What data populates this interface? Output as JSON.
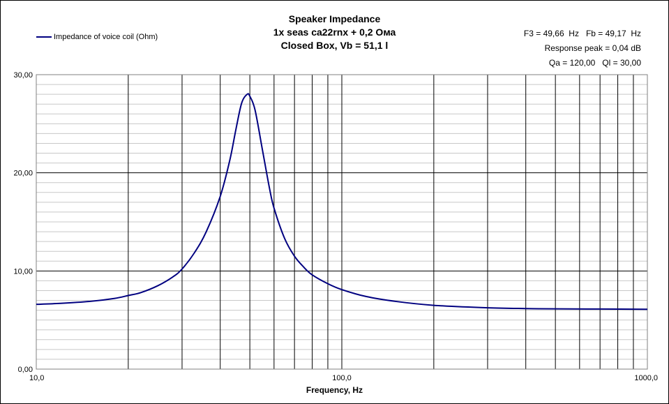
{
  "chart_data": {
    "type": "line",
    "title_lines": [
      "Speaker Impedance",
      "1x seas ca22rnx + 0,2 Ома",
      "Closed Box, Vb = 51,1 l"
    ],
    "annotations": [
      "F3 = 49,66  Hz   Fb = 49,17  Hz",
      "Response peak = 0,04 dB",
      "Qa = 120,00   Ql = 30,00"
    ],
    "xlabel": "Frequency, Hz",
    "ylabel": "",
    "x_scale": "log",
    "xlim": [
      10,
      1000
    ],
    "ylim": [
      0,
      30
    ],
    "x_tick_labels": [
      "10,0",
      "100,0",
      "1000,0"
    ],
    "x_ticks": [
      10,
      100,
      1000
    ],
    "y_tick_labels": [
      "0,00",
      "10,00",
      "20,00",
      "30,00"
    ],
    "y_ticks": [
      0,
      10,
      20,
      30
    ],
    "grid": true,
    "legend_position": "top-left",
    "series": [
      {
        "name": "Impedance of voice coil (Ohm)",
        "color": "#000080",
        "x": [
          10,
          12,
          15,
          18,
          20,
          22,
          25,
          28,
          30,
          33,
          36,
          40,
          43,
          45,
          47,
          49,
          50,
          52,
          55,
          58,
          60,
          65,
          70,
          75,
          80,
          90,
          100,
          120,
          150,
          200,
          300,
          400,
          500,
          700,
          1000
        ],
        "y": [
          6.6,
          6.7,
          6.9,
          7.2,
          7.5,
          7.8,
          8.5,
          9.4,
          10.2,
          11.9,
          14.0,
          17.6,
          21.3,
          24.4,
          27.1,
          28.0,
          27.8,
          26.4,
          22.3,
          18.4,
          16.4,
          13.3,
          11.5,
          10.4,
          9.6,
          8.7,
          8.1,
          7.4,
          6.9,
          6.5,
          6.25,
          6.17,
          6.14,
          6.12,
          6.1
        ]
      }
    ]
  }
}
